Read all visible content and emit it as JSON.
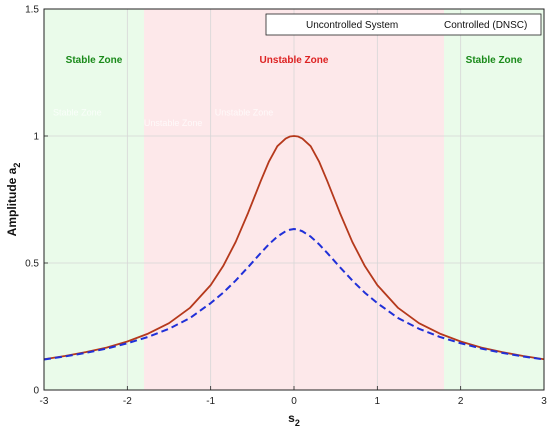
{
  "chart_data": {
    "type": "line",
    "xlabel": "s",
    "xlabel_sub": "2",
    "ylabel": "Amplitude a",
    "ylabel_sub": "2",
    "xlim": [
      -3,
      3
    ],
    "ylim": [
      0,
      1.5
    ],
    "xticks": [
      -3,
      -2,
      -1,
      0,
      1,
      2,
      3
    ],
    "xtick_labels": [
      "-3",
      "-2",
      "-1",
      "0",
      "1",
      "2",
      "3"
    ],
    "yticks": [
      0,
      0.5,
      1,
      1.5
    ],
    "ytick_labels": [
      "0",
      "0.5",
      "1",
      "1.5"
    ],
    "grid": true,
    "legend_position": "top-right",
    "zones": [
      {
        "label": "Stable Zone",
        "x_start": -3,
        "x_end": -1.8,
        "fill": "#eafbea",
        "label_color": "#1a8a1a"
      },
      {
        "label": "Unstable Zone",
        "x_start": -1.8,
        "x_end": 1.8,
        "fill": "#fde8ea",
        "label_color": "#dd2222"
      },
      {
        "label": "Stable Zone",
        "x_start": 1.8,
        "x_end": 3,
        "fill": "#eafbea",
        "label_color": "#1a8a1a"
      }
    ],
    "faint_labels": [
      {
        "text": "Stable Zone",
        "x": -2.6,
        "y": 1.08
      },
      {
        "text": "Unstable Zone",
        "x": -1.45,
        "y": 1.04
      },
      {
        "text": "Unstable Zone",
        "x": -0.6,
        "y": 1.08
      }
    ],
    "x": [
      -3.0,
      -2.75,
      -2.5,
      -2.25,
      -2.0,
      -1.75,
      -1.5,
      -1.25,
      -1.0,
      -0.85,
      -0.7,
      -0.55,
      -0.4,
      -0.3,
      -0.2,
      -0.1,
      -0.05,
      0.0,
      0.05,
      0.1,
      0.2,
      0.3,
      0.4,
      0.55,
      0.7,
      0.85,
      1.0,
      1.25,
      1.5,
      1.75,
      2.0,
      2.25,
      2.5,
      2.75,
      3.0
    ],
    "series": [
      {
        "name": "Uncontrolled System",
        "color": "#b5391c",
        "style": "solid",
        "values": [
          0.121,
          0.134,
          0.149,
          0.167,
          0.191,
          0.222,
          0.263,
          0.323,
          0.413,
          0.488,
          0.583,
          0.698,
          0.822,
          0.9,
          0.96,
          0.99,
          0.998,
          1.0,
          0.998,
          0.99,
          0.96,
          0.9,
          0.822,
          0.698,
          0.583,
          0.488,
          0.413,
          0.323,
          0.263,
          0.222,
          0.191,
          0.167,
          0.149,
          0.134,
          0.121
        ]
      },
      {
        "name": "Controlled (DNSC)",
        "color": "#2030d8",
        "style": "dashed",
        "values": [
          0.12,
          0.132,
          0.146,
          0.163,
          0.184,
          0.209,
          0.241,
          0.283,
          0.342,
          0.383,
          0.431,
          0.484,
          0.539,
          0.574,
          0.604,
          0.625,
          0.631,
          0.634,
          0.631,
          0.625,
          0.604,
          0.574,
          0.539,
          0.484,
          0.431,
          0.383,
          0.342,
          0.283,
          0.241,
          0.209,
          0.184,
          0.163,
          0.146,
          0.132,
          0.12
        ]
      }
    ]
  }
}
